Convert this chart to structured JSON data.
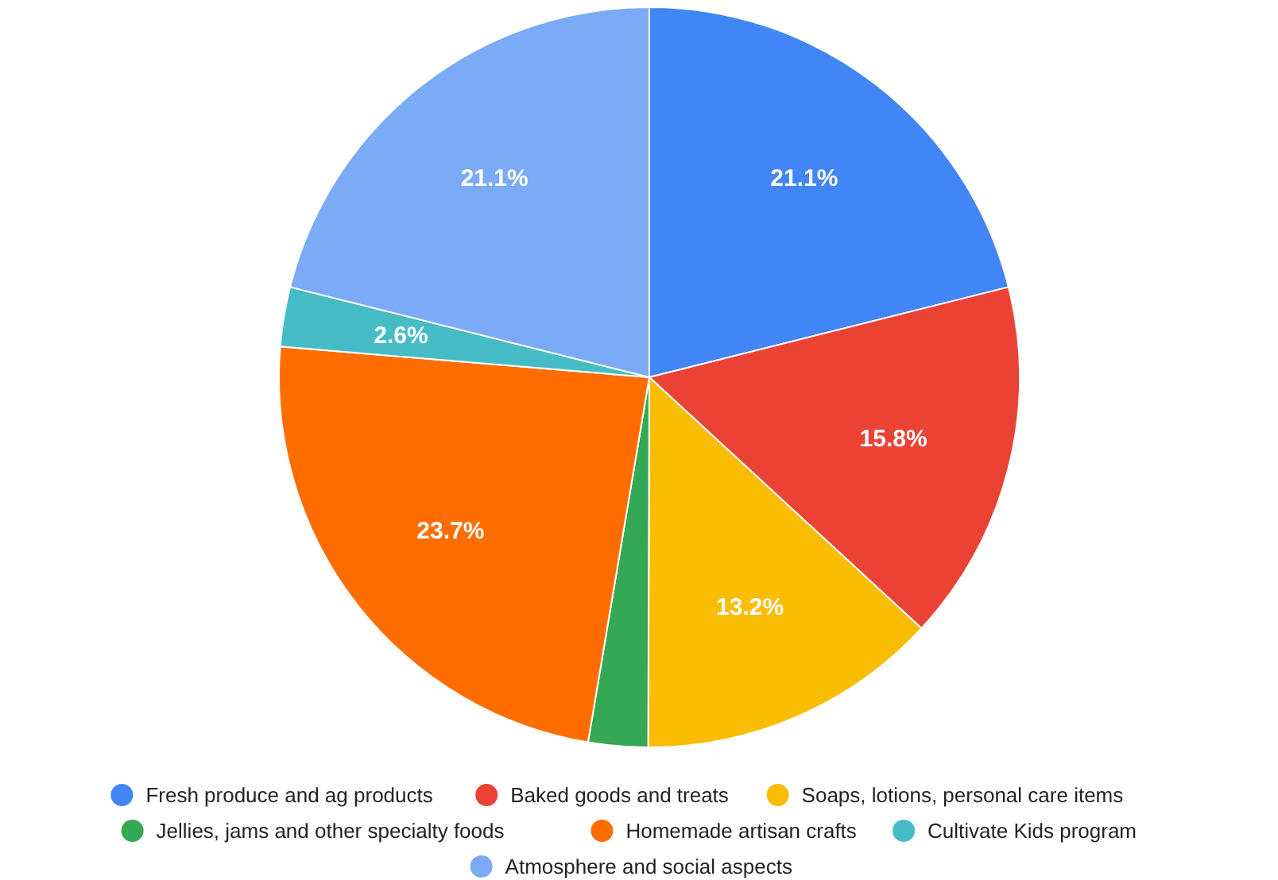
{
  "chart_data": {
    "type": "pie",
    "categories": [
      "Fresh produce and ag products",
      "Baked goods and treats",
      "Soaps, lotions, personal care items",
      "Jellies, jams and other specialty foods",
      "Homemade artisan crafts",
      "Cultivate Kids program",
      "Atmosphere and social aspects"
    ],
    "values": [
      21.1,
      15.8,
      13.2,
      2.6,
      23.7,
      2.6,
      21.1
    ],
    "colors": [
      "#4285f4",
      "#ea4335",
      "#fbbc04",
      "#34a853",
      "#ff6d01",
      "#46bdc6",
      "#7baaf7"
    ],
    "value_labels": [
      "21.1%",
      "15.8%",
      "13.2%",
      null,
      "23.7%",
      "2.6%",
      "21.1%"
    ],
    "legend": "bottom"
  }
}
